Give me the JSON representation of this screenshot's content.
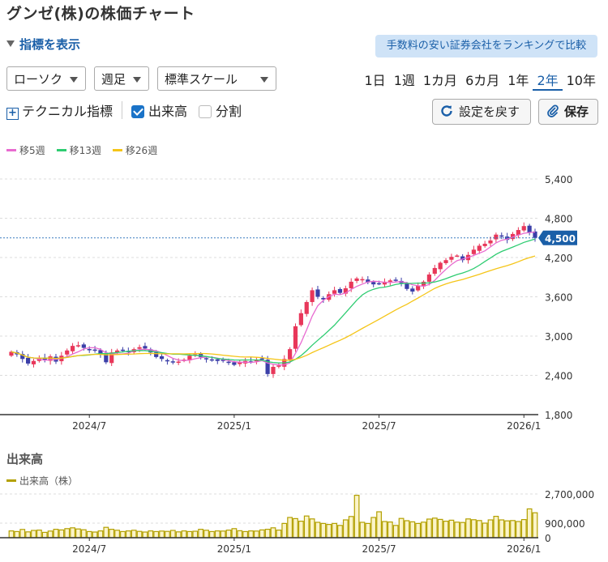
{
  "title": "グンゼ(株)の株価チャート",
  "indicator_toggle": "指標を表示",
  "promo": "手数料の安い証券会社をランキングで比較",
  "selects": {
    "chart_type": "ローソク",
    "interval": "週足",
    "scale": "標準スケール"
  },
  "periods": [
    "1日",
    "1週",
    "1カ月",
    "6カ月",
    "1年",
    "2年",
    "10年"
  ],
  "active_period": "2年",
  "options": {
    "technical": "テクニカル指標",
    "volume": "出来高",
    "volume_checked": true,
    "split": "分割",
    "split_checked": false
  },
  "buttons": {
    "reset": "設定を戻す",
    "save": "保存"
  },
  "legend": [
    {
      "label": "移5週",
      "color": "#e86ad0"
    },
    {
      "label": "移13週",
      "color": "#2ecc71"
    },
    {
      "label": "移26週",
      "color": "#f5c518"
    }
  ],
  "colors": {
    "up": "#e8375a",
    "down": "#3b3fa8",
    "accent": "#1a5fa8",
    "volume": "#b3a000"
  },
  "volume_section": {
    "title": "出来高",
    "legend": "出来高（株）"
  },
  "chart_data": {
    "type": "candlestick",
    "y_ticks": [
      "5,400",
      "4,800",
      "4,200",
      "3,600",
      "3,000",
      "2,400",
      "1,800"
    ],
    "ylim": [
      1800,
      5400
    ],
    "x_ticks": [
      {
        "label": "2024/7",
        "index": 14
      },
      {
        "label": "2025/1",
        "index": 40
      },
      {
        "label": "2025/7",
        "index": 66
      },
      {
        "label": "2026/1",
        "index": 92
      }
    ],
    "current_price": 4500,
    "current_price_label": "4,500",
    "volume_y_ticks": [
      "2,700,000",
      "900,000",
      "0"
    ],
    "volume_ylim": [
      0,
      2700000
    ],
    "closes": [
      2760,
      2720,
      2650,
      2580,
      2620,
      2660,
      2640,
      2690,
      2610,
      2700,
      2780,
      2850,
      2860,
      2820,
      2800,
      2780,
      2720,
      2600,
      2750,
      2780,
      2790,
      2760,
      2800,
      2830,
      2810,
      2750,
      2680,
      2650,
      2620,
      2600,
      2610,
      2640,
      2700,
      2720,
      2680,
      2650,
      2640,
      2620,
      2620,
      2600,
      2560,
      2600,
      2620,
      2610,
      2640,
      2650,
      2420,
      2530,
      2550,
      2650,
      2800,
      3150,
      3350,
      3520,
      3700,
      3600,
      3560,
      3640,
      3700,
      3660,
      3730,
      3830,
      3880,
      3870,
      3820,
      3790,
      3800,
      3830,
      3850,
      3860,
      3810,
      3720,
      3680,
      3770,
      3830,
      3940,
      4040,
      4120,
      4160,
      4210,
      4230,
      4160,
      4240,
      4320,
      4380,
      4410,
      4460,
      4550,
      4520,
      4470,
      4560,
      4620,
      4680,
      4580,
      4500
    ]
  },
  "volume_data": [
    420000,
    380000,
    510000,
    360000,
    450000,
    470000,
    330000,
    410000,
    520000,
    480000,
    560000,
    610000,
    540000,
    490000,
    380000,
    350000,
    420000,
    640000,
    520000,
    460000,
    380000,
    420000,
    460000,
    390000,
    350000,
    420000,
    380000,
    410000,
    390000,
    450000,
    360000,
    420000,
    380000,
    400000,
    520000,
    460000,
    380000,
    420000,
    410000,
    470000,
    560000,
    430000,
    380000,
    420000,
    410000,
    480000,
    520000,
    610000,
    470000,
    880000,
    1250000,
    1180000,
    1020000,
    1340000,
    1160000,
    950000,
    880000,
    820000,
    880000,
    760000,
    1100000,
    1310000,
    2620000,
    950000,
    880000,
    1250000,
    1600000,
    1000000,
    970000,
    760000,
    1190000,
    1050000,
    980000,
    880000,
    960000,
    1150000,
    1210000,
    1130000,
    1020000,
    1080000,
    960000,
    940000,
    1160000,
    1110000,
    1060000,
    900000,
    1100000,
    1320000,
    1100000,
    1040000,
    1060000,
    1000000,
    1120000,
    1780000,
    1540000
  ]
}
